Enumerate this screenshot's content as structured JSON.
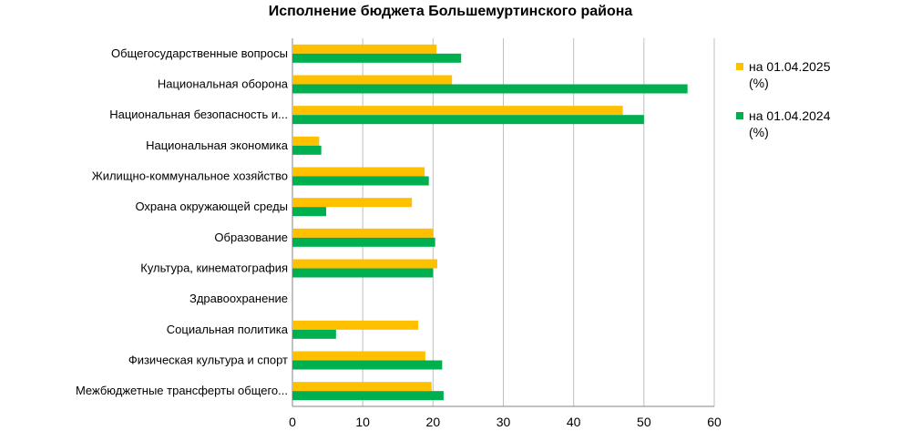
{
  "chart_data": {
    "type": "bar",
    "orientation": "horizontal",
    "title": "Исполнение бюджета Большемуртинского района",
    "xlabel": "",
    "ylabel": "",
    "xlim": [
      0,
      60
    ],
    "xticks": [
      0,
      10,
      20,
      30,
      40,
      50,
      60
    ],
    "grid": true,
    "legend_position": "right",
    "categories": [
      "Общегосударственные вопросы",
      "Национальная оборона",
      "Национальная безопасность и...",
      "Национальная экономика",
      "Жилищно-коммунальное хозяйство",
      "Охрана окружающей среды",
      "Образование",
      "Культура, кинематография",
      "Здравоохранение",
      "Социальная политика",
      "Физическая культура и спорт",
      "Межбюджетные трансферты общего..."
    ],
    "series": [
      {
        "name": "на 01.04.2025 (%)",
        "legend_lines": [
          "на 01.04.2025",
          "(%)"
        ],
        "color": "#FFC000",
        "values": [
          20.5,
          22.7,
          47,
          3.8,
          18.8,
          17,
          20,
          20.6,
          0,
          17.9,
          18.9,
          19.8
        ]
      },
      {
        "name": "на 01.04.2024 (%)",
        "legend_lines": [
          "на 01.04.2024",
          "(%)"
        ],
        "color": "#00B050",
        "values": [
          24,
          56.2,
          50,
          4.1,
          19.4,
          4.8,
          20.3,
          20,
          0,
          6.2,
          21.3,
          21.5
        ]
      }
    ]
  }
}
